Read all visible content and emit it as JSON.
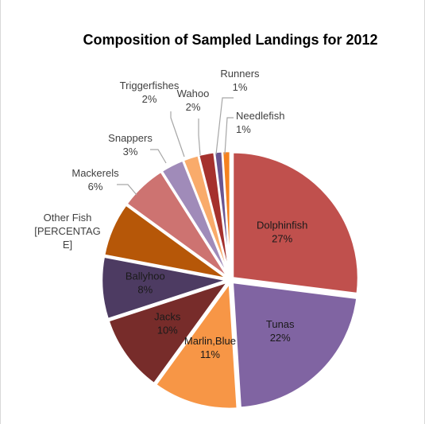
{
  "chart_data": {
    "type": "pie",
    "title": "Composition of Sampled Landings for 2012",
    "slices": [
      {
        "name": "Dolphinfish",
        "value": 27,
        "label_lines": [
          "Dolphinfish",
          "27%"
        ],
        "color": "#c0504d",
        "label_pos": "inside"
      },
      {
        "name": "Tunas",
        "value": 22,
        "label_lines": [
          "Tunas",
          "22%"
        ],
        "color": "#8064a2",
        "label_pos": "inside"
      },
      {
        "name": "Marlin,Blue",
        "value": 11,
        "label_lines": [
          "Marlin,Blue",
          "11%"
        ],
        "color": "#f79646",
        "label_pos": "inside"
      },
      {
        "name": "Jacks",
        "value": 10,
        "label_lines": [
          "Jacks",
          "10%"
        ],
        "color": "#772c2a",
        "label_pos": "inside"
      },
      {
        "name": "Ballyhoo",
        "value": 8,
        "label_lines": [
          "Ballyhoo",
          "8%"
        ],
        "color": "#4d3b62",
        "label_pos": "inside"
      },
      {
        "name": "Other Fish",
        "value": 7,
        "label_lines": [
          "Other Fish",
          "[PERCENTAG",
          "E]"
        ],
        "color": "#b65708",
        "label_pos": "outside"
      },
      {
        "name": "Mackerels",
        "value": 6,
        "label_lines": [
          "Mackerels",
          "6%"
        ],
        "color": "#cd7371",
        "label_pos": "outside"
      },
      {
        "name": "Snappers",
        "value": 3,
        "label_lines": [
          "Snappers",
          "3%"
        ],
        "color": "#a08bb9",
        "label_pos": "outside"
      },
      {
        "name": "Triggerfishes",
        "value": 2,
        "label_lines": [
          "Triggerfishes",
          "2%"
        ],
        "color": "#f9ab6b",
        "label_pos": "outside"
      },
      {
        "name": "Wahoo",
        "value": 2,
        "label_lines": [
          "Wahoo",
          "2%"
        ],
        "color": "#a5312d",
        "label_pos": "outside"
      },
      {
        "name": "Runners",
        "value": 1,
        "label_lines": [
          "Runners",
          "1%"
        ],
        "color": "#6a5590",
        "label_pos": "outside"
      },
      {
        "name": "Needlefish",
        "value": 1,
        "label_lines": [
          "Needlefish",
          "1%"
        ],
        "color": "#f58220",
        "label_pos": "outside"
      }
    ]
  }
}
